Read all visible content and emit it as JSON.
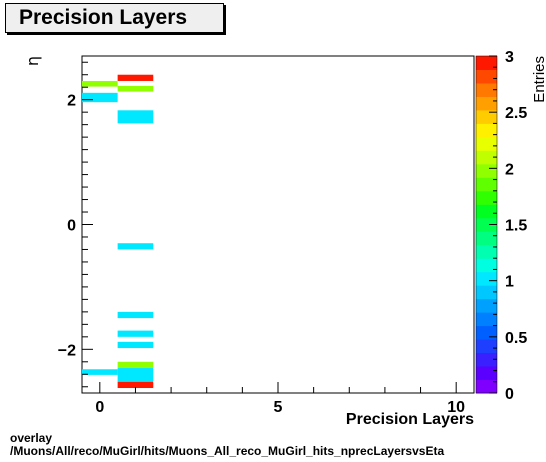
{
  "title": "Precision Layers",
  "footer": {
    "line1": "overlay",
    "line2": "/Muons/All/reco/MuGirl/hits/Muons_All_reco_MuGirl_hits_nprecLayersvsEta"
  },
  "chart_data": {
    "type": "heatmap",
    "title": "Precision Layers",
    "xlabel": "Precision Layers",
    "ylabel": "η",
    "zlabel": "Entries",
    "xlim": [
      -0.5,
      10.5
    ],
    "ylim": [
      -2.7,
      2.7
    ],
    "zlim": [
      0,
      3
    ],
    "x_ticks": [
      "0",
      "5",
      "10"
    ],
    "x_tick_values": [
      0,
      5,
      10
    ],
    "y_ticks": [
      "−2",
      "0",
      "2"
    ],
    "y_tick_values": [
      -2,
      0,
      2
    ],
    "z_ticks": [
      "0",
      "0.5",
      "1",
      "1.5",
      "2",
      "2.5",
      "3"
    ],
    "z_tick_values": [
      0,
      0.5,
      1,
      1.5,
      2,
      2.5,
      3
    ],
    "palette": [
      "#7f00ff",
      "#5a00ff",
      "#3a1fff",
      "#1f3fff",
      "#0060ff",
      "#0080ff",
      "#00a0ff",
      "#00c8ff",
      "#00e8ff",
      "#00ffe0",
      "#00ffb0",
      "#00ff80",
      "#00ff50",
      "#00ff20",
      "#30ff00",
      "#60ff00",
      "#90ff00",
      "#c0ff00",
      "#e8ff00",
      "#fff000",
      "#ffcc00",
      "#ffa000",
      "#ff7800",
      "#ff4800",
      "#ff1800"
    ],
    "cells": [
      {
        "x": 0,
        "y0": 2.21,
        "y1": 2.3,
        "value": 2
      },
      {
        "x": 0,
        "y0": 1.96,
        "y1": 2.11,
        "value": 1
      },
      {
        "x": 0,
        "y0": -2.41,
        "y1": -2.32,
        "value": 1
      },
      {
        "x": 1,
        "y0": 2.3,
        "y1": 2.4,
        "value": 3
      },
      {
        "x": 1,
        "y0": 2.13,
        "y1": 2.22,
        "value": 2
      },
      {
        "x": 1,
        "y0": 1.62,
        "y1": 1.83,
        "value": 1
      },
      {
        "x": 1,
        "y0": -0.4,
        "y1": -0.3,
        "value": 1
      },
      {
        "x": 1,
        "y0": -1.5,
        "y1": -1.4,
        "value": 1
      },
      {
        "x": 1,
        "y0": -1.8,
        "y1": -1.7,
        "value": 1
      },
      {
        "x": 1,
        "y0": -1.98,
        "y1": -1.88,
        "value": 1
      },
      {
        "x": 1,
        "y0": -2.3,
        "y1": -2.2,
        "value": 2
      },
      {
        "x": 1,
        "y0": -2.52,
        "y1": -2.3,
        "value": 1
      },
      {
        "x": 1,
        "y0": -2.62,
        "y1": -2.52,
        "value": 3
      }
    ]
  }
}
